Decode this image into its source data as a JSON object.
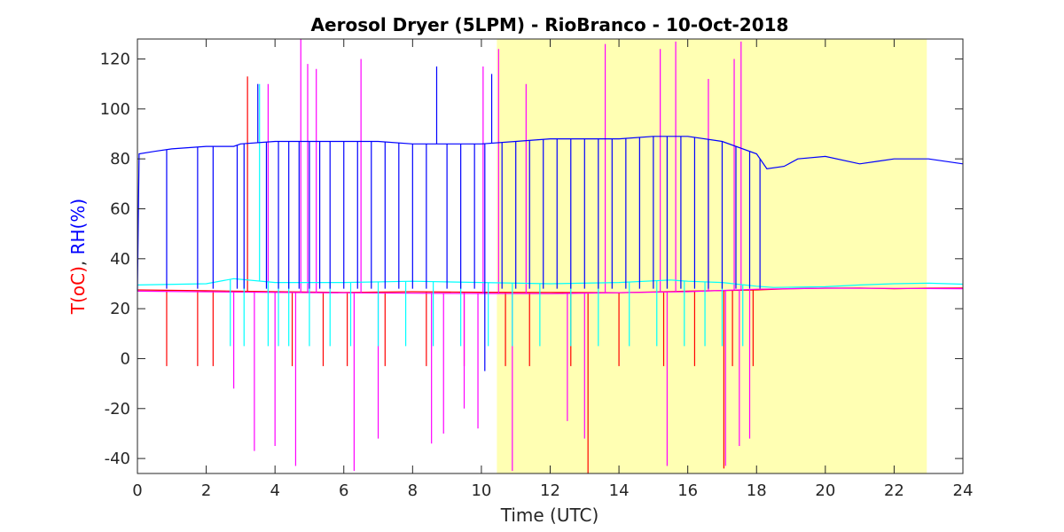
{
  "chart_data": {
    "type": "line",
    "title": "Aerosol Dryer (5LPM) - RioBranco - 10-Oct-2018",
    "xlabel": "Time (UTC)",
    "ylabel_parts": [
      {
        "text": "T(oC)",
        "color": "#ff0000"
      },
      {
        "text": ", ",
        "color": "#262626"
      },
      {
        "text": "RH(%)",
        "color": "#0000ff"
      }
    ],
    "xlim": [
      0,
      24
    ],
    "ylim": [
      -46,
      128
    ],
    "xticks": [
      0,
      2,
      4,
      6,
      8,
      10,
      12,
      14,
      16,
      18,
      20,
      22,
      24
    ],
    "yticks": [
      -40,
      -20,
      0,
      20,
      40,
      60,
      80,
      100,
      120
    ],
    "grid": false,
    "highlight_band": {
      "x": [
        10.45,
        22.95
      ],
      "color": "#ffffb3"
    },
    "series": [
      {
        "color": "#ff0000",
        "x": [
          0,
          2,
          4,
          6,
          8,
          10,
          12,
          14,
          16,
          18,
          19,
          20,
          21,
          22,
          23,
          24
        ],
        "y": [
          27.5,
          27.2,
          26.8,
          26.5,
          26.8,
          26.6,
          26.5,
          26.4,
          27.0,
          27.5,
          28.0,
          28.2,
          28.3,
          28.0,
          28.2,
          28.3
        ],
        "spikes": [
          {
            "x": 0.85,
            "y": -3
          },
          {
            "x": 1.75,
            "y": -3
          },
          {
            "x": 2.2,
            "y": -3
          },
          {
            "x": 3.2,
            "y": 113
          },
          {
            "x": 4.5,
            "y": -3
          },
          {
            "x": 5.4,
            "y": -3
          },
          {
            "x": 6.1,
            "y": -3
          },
          {
            "x": 7.2,
            "y": -3
          },
          {
            "x": 8.4,
            "y": -3
          },
          {
            "x": 9.5,
            "y": -3
          },
          {
            "x": 10.7,
            "y": -3
          },
          {
            "x": 11.4,
            "y": -3
          },
          {
            "x": 12.6,
            "y": -3
          },
          {
            "x": 13.1,
            "y": -46
          },
          {
            "x": 14.0,
            "y": -3
          },
          {
            "x": 15.3,
            "y": -3
          },
          {
            "x": 16.2,
            "y": -3
          },
          {
            "x": 17.05,
            "y": -44
          },
          {
            "x": 17.3,
            "y": -3
          },
          {
            "x": 17.9,
            "y": -3
          }
        ]
      },
      {
        "color": "#ff00ff",
        "x": [
          0,
          4,
          8,
          12,
          16,
          18,
          20,
          24
        ],
        "y": [
          27.0,
          26.5,
          26.2,
          26.0,
          26.8,
          27.8,
          28.2,
          28.0
        ],
        "spikes": [
          {
            "x": 2.8,
            "y": -12
          },
          {
            "x": 3.4,
            "y": -37
          },
          {
            "x": 3.8,
            "y": 110
          },
          {
            "x": 4.0,
            "y": -35
          },
          {
            "x": 4.6,
            "y": -43
          },
          {
            "x": 4.75,
            "y": 128
          },
          {
            "x": 4.95,
            "y": 118
          },
          {
            "x": 5.2,
            "y": 116
          },
          {
            "x": 6.3,
            "y": -45
          },
          {
            "x": 6.5,
            "y": 120
          },
          {
            "x": 7.0,
            "y": -32
          },
          {
            "x": 8.55,
            "y": -34
          },
          {
            "x": 8.9,
            "y": -30
          },
          {
            "x": 9.5,
            "y": -20
          },
          {
            "x": 9.9,
            "y": -28
          },
          {
            "x": 10.05,
            "y": 117
          },
          {
            "x": 10.5,
            "y": 124
          },
          {
            "x": 10.9,
            "y": -45
          },
          {
            "x": 11.3,
            "y": 110
          },
          {
            "x": 12.5,
            "y": -25
          },
          {
            "x": 13.0,
            "y": -32
          },
          {
            "x": 13.6,
            "y": 126
          },
          {
            "x": 15.2,
            "y": 124
          },
          {
            "x": 15.4,
            "y": -43
          },
          {
            "x": 15.65,
            "y": 127
          },
          {
            "x": 16.6,
            "y": 112
          },
          {
            "x": 17.1,
            "y": -43
          },
          {
            "x": 17.35,
            "y": 120
          },
          {
            "x": 17.5,
            "y": -35
          },
          {
            "x": 17.55,
            "y": 127
          },
          {
            "x": 17.8,
            "y": -32
          }
        ]
      },
      {
        "color": "#00ffff",
        "x": [
          0,
          2,
          2.8,
          4,
          6,
          8,
          10,
          12,
          14,
          15.5,
          16,
          17,
          18,
          18.5,
          20,
          21,
          22,
          23,
          24
        ],
        "y": [
          29.5,
          30.0,
          32.0,
          30.5,
          30.5,
          31.0,
          30.5,
          30.0,
          30.5,
          31.5,
          31.0,
          30.5,
          29.0,
          28.5,
          28.8,
          29.5,
          30.0,
          30.2,
          29.8
        ],
        "spikes": [
          {
            "x": 2.7,
            "y": 5
          },
          {
            "x": 3.1,
            "y": 5
          },
          {
            "x": 3.55,
            "y": 110
          },
          {
            "x": 3.8,
            "y": 5
          },
          {
            "x": 4.1,
            "y": 5
          },
          {
            "x": 4.4,
            "y": 5
          },
          {
            "x": 5.0,
            "y": 5
          },
          {
            "x": 5.6,
            "y": 5
          },
          {
            "x": 6.2,
            "y": 5
          },
          {
            "x": 7.0,
            "y": 5
          },
          {
            "x": 7.8,
            "y": 5
          },
          {
            "x": 8.6,
            "y": 5
          },
          {
            "x": 9.4,
            "y": 5
          },
          {
            "x": 10.2,
            "y": 5
          },
          {
            "x": 10.9,
            "y": 5
          },
          {
            "x": 11.7,
            "y": 5
          },
          {
            "x": 12.6,
            "y": 5
          },
          {
            "x": 13.4,
            "y": 5
          },
          {
            "x": 14.3,
            "y": 5
          },
          {
            "x": 15.1,
            "y": 5
          },
          {
            "x": 15.9,
            "y": 5
          },
          {
            "x": 16.5,
            "y": 5
          },
          {
            "x": 17.0,
            "y": 5
          },
          {
            "x": 17.6,
            "y": 5
          }
        ]
      },
      {
        "color": "#0000ff",
        "x": [
          0,
          0.05,
          0.5,
          1,
          2,
          2.8,
          3,
          4,
          5,
          6,
          7,
          8,
          9,
          10,
          11,
          12,
          13,
          14,
          15,
          16,
          17,
          18,
          18.3,
          18.8,
          19.2,
          20,
          21,
          21.5,
          22,
          23,
          24
        ],
        "y": [
          27,
          82,
          83,
          84,
          85,
          85,
          86,
          87,
          87,
          87,
          87,
          86,
          86,
          86,
          87,
          88,
          88,
          88,
          89,
          89,
          87,
          82,
          76,
          77,
          80,
          81,
          78,
          79,
          80,
          80,
          78
        ],
        "spikes": [
          {
            "x": 0.85,
            "y": 28
          },
          {
            "x": 1.75,
            "y": 28
          },
          {
            "x": 2.2,
            "y": 28
          },
          {
            "x": 2.9,
            "y": 28
          },
          {
            "x": 3.1,
            "y": 28
          },
          {
            "x": 3.5,
            "y": 110
          },
          {
            "x": 3.75,
            "y": 28
          },
          {
            "x": 4.1,
            "y": 28
          },
          {
            "x": 4.4,
            "y": 28
          },
          {
            "x": 4.7,
            "y": 28
          },
          {
            "x": 5.0,
            "y": 28
          },
          {
            "x": 5.3,
            "y": 28
          },
          {
            "x": 5.6,
            "y": 28
          },
          {
            "x": 6.0,
            "y": 28
          },
          {
            "x": 6.4,
            "y": 28
          },
          {
            "x": 6.8,
            "y": 28
          },
          {
            "x": 7.2,
            "y": 28
          },
          {
            "x": 7.6,
            "y": 28
          },
          {
            "x": 8.0,
            "y": 28
          },
          {
            "x": 8.4,
            "y": 28
          },
          {
            "x": 8.7,
            "y": 117
          },
          {
            "x": 9.0,
            "y": 28
          },
          {
            "x": 9.4,
            "y": 28
          },
          {
            "x": 9.8,
            "y": 28
          },
          {
            "x": 10.1,
            "y": -5
          },
          {
            "x": 10.3,
            "y": 114
          },
          {
            "x": 10.6,
            "y": 28
          },
          {
            "x": 11.0,
            "y": 28
          },
          {
            "x": 11.4,
            "y": 28
          },
          {
            "x": 11.8,
            "y": 28
          },
          {
            "x": 12.2,
            "y": 28
          },
          {
            "x": 12.6,
            "y": 28
          },
          {
            "x": 13.0,
            "y": 28
          },
          {
            "x": 13.4,
            "y": 28
          },
          {
            "x": 13.8,
            "y": 28
          },
          {
            "x": 14.2,
            "y": 28
          },
          {
            "x": 14.6,
            "y": 28
          },
          {
            "x": 15.0,
            "y": 28
          },
          {
            "x": 15.4,
            "y": 28
          },
          {
            "x": 15.8,
            "y": 28
          },
          {
            "x": 16.2,
            "y": 28
          },
          {
            "x": 16.6,
            "y": 28
          },
          {
            "x": 17.0,
            "y": 28
          },
          {
            "x": 17.4,
            "y": 28
          },
          {
            "x": 17.8,
            "y": 28
          },
          {
            "x": 18.1,
            "y": 28
          }
        ]
      }
    ]
  }
}
